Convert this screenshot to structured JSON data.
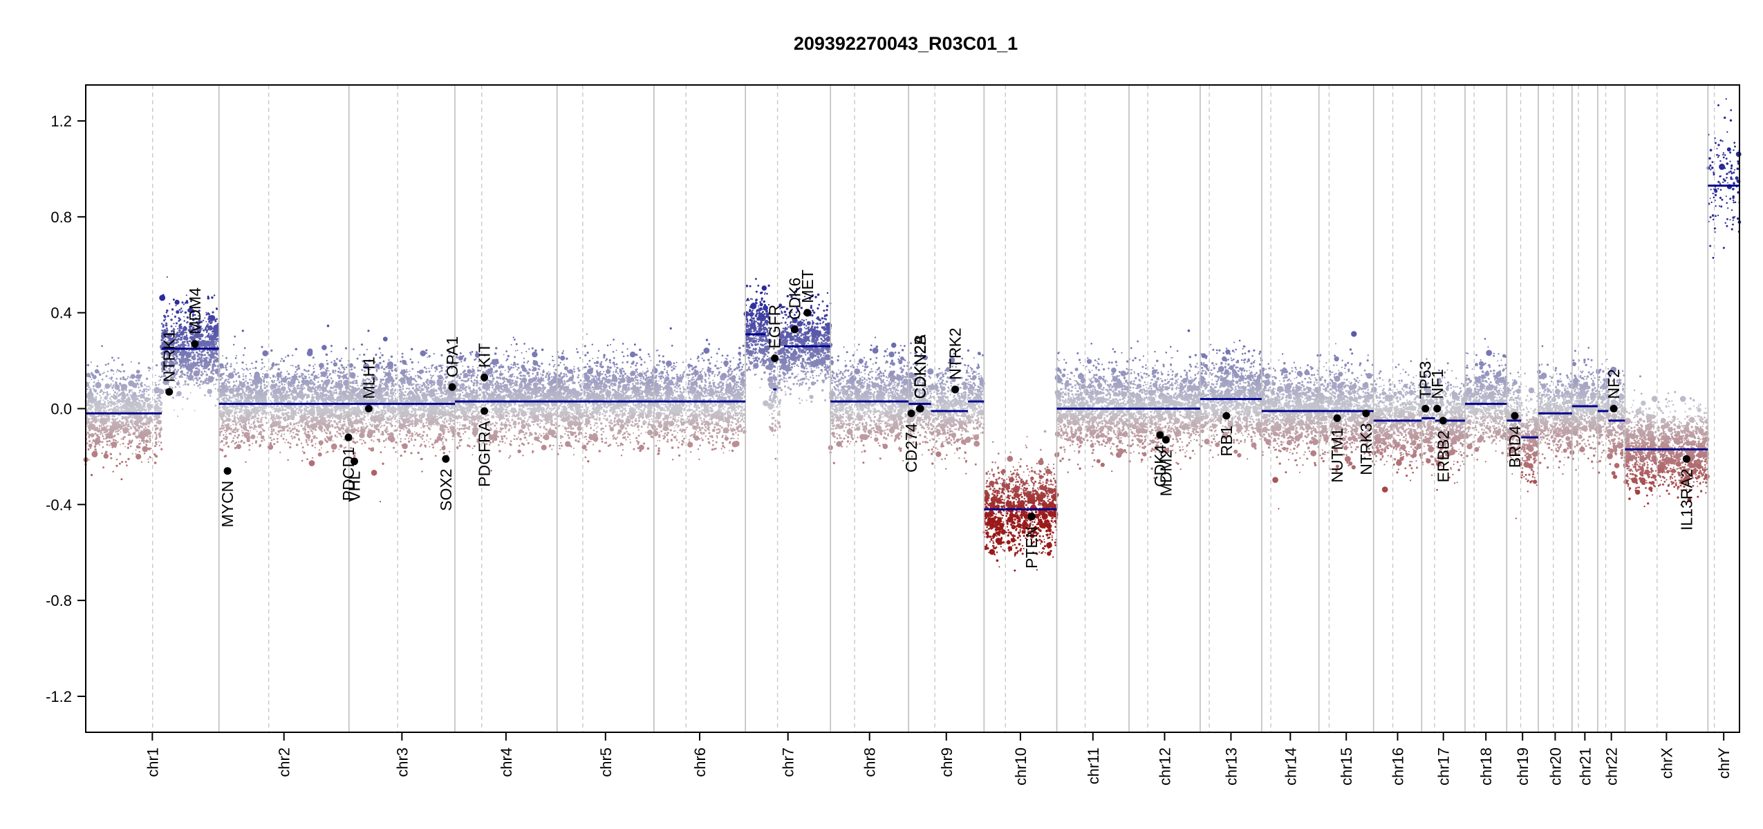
{
  "chart_data": {
    "type": "scatter",
    "title": "209392270043_R03C01_1",
    "xlabel": "",
    "ylabel": "",
    "ylim": [
      -1.35,
      1.35
    ],
    "yticks": [
      "1.2",
      "0.8",
      "0.4",
      "0.0",
      "-0.4",
      "-0.8",
      "-1.2"
    ],
    "ytick_values": [
      1.2,
      0.8,
      0.4,
      0.0,
      -0.4,
      -0.8,
      -1.2
    ],
    "chromosomes": [
      {
        "name": "chr1",
        "length": 249,
        "centromere": 125
      },
      {
        "name": "chr2",
        "length": 243,
        "centromere": 93
      },
      {
        "name": "chr3",
        "length": 198,
        "centromere": 91
      },
      {
        "name": "chr4",
        "length": 191,
        "centromere": 50
      },
      {
        "name": "chr5",
        "length": 181,
        "centromere": 48
      },
      {
        "name": "chr6",
        "length": 171,
        "centromere": 60
      },
      {
        "name": "chr7",
        "length": 159,
        "centromere": 60
      },
      {
        "name": "chr8",
        "length": 146,
        "centromere": 45
      },
      {
        "name": "chr9",
        "length": 141,
        "centromere": 49
      },
      {
        "name": "chr10",
        "length": 136,
        "centromere": 40
      },
      {
        "name": "chr11",
        "length": 135,
        "centromere": 53
      },
      {
        "name": "chr12",
        "length": 133,
        "centromere": 35
      },
      {
        "name": "chr13",
        "length": 115,
        "centromere": 17
      },
      {
        "name": "chr14",
        "length": 107,
        "centromere": 17
      },
      {
        "name": "chr15",
        "length": 102,
        "centromere": 19
      },
      {
        "name": "chr16",
        "length": 90,
        "centromere": 36
      },
      {
        "name": "chr17",
        "length": 81,
        "centromere": 24
      },
      {
        "name": "chr18",
        "length": 78,
        "centromere": 17
      },
      {
        "name": "chr19",
        "length": 59,
        "centromere": 26
      },
      {
        "name": "chr20",
        "length": 63,
        "centromere": 28
      },
      {
        "name": "chr21",
        "length": 48,
        "centromere": 12
      },
      {
        "name": "chr22",
        "length": 51,
        "centromere": 15
      },
      {
        "name": "chrX",
        "length": 155,
        "centromere": 60
      },
      {
        "name": "chrY",
        "length": 59,
        "centromere": 12
      }
    ],
    "segments": [
      {
        "chr": "chr1",
        "start": 0,
        "end": 142,
        "value": -0.02
      },
      {
        "chr": "chr1",
        "start": 142,
        "end": 249,
        "value": 0.25
      },
      {
        "chr": "chr2",
        "start": 0,
        "end": 243,
        "value": 0.02
      },
      {
        "chr": "chr3",
        "start": 0,
        "end": 198,
        "value": 0.02
      },
      {
        "chr": "chr4",
        "start": 0,
        "end": 191,
        "value": 0.03
      },
      {
        "chr": "chr5",
        "start": 0,
        "end": 181,
        "value": 0.03
      },
      {
        "chr": "chr6",
        "start": 0,
        "end": 171,
        "value": 0.03
      },
      {
        "chr": "chr7",
        "start": 0,
        "end": 38,
        "value": 0.31
      },
      {
        "chr": "chr7",
        "start": 52,
        "end": 58,
        "value": 0.08
      },
      {
        "chr": "chr7",
        "start": 72,
        "end": 159,
        "value": 0.26
      },
      {
        "chr": "chr8",
        "start": 0,
        "end": 146,
        "value": 0.03
      },
      {
        "chr": "chr9",
        "start": 0,
        "end": 42,
        "value": 0.02
      },
      {
        "chr": "chr9",
        "start": 42,
        "end": 111,
        "value": -0.01
      },
      {
        "chr": "chr9",
        "start": 111,
        "end": 141,
        "value": 0.03
      },
      {
        "chr": "chr10",
        "start": 0,
        "end": 136,
        "value": -0.42
      },
      {
        "chr": "chr11",
        "start": 0,
        "end": 135,
        "value": 0.0
      },
      {
        "chr": "chr12",
        "start": 0,
        "end": 133,
        "value": 0.0
      },
      {
        "chr": "chr13",
        "start": 0,
        "end": 115,
        "value": 0.04
      },
      {
        "chr": "chr14",
        "start": 0,
        "end": 107,
        "value": -0.01
      },
      {
        "chr": "chr15",
        "start": 0,
        "end": 102,
        "value": -0.01
      },
      {
        "chr": "chr16",
        "start": 0,
        "end": 90,
        "value": -0.05
      },
      {
        "chr": "chr17",
        "start": 0,
        "end": 25,
        "value": -0.04
      },
      {
        "chr": "chr17",
        "start": 25,
        "end": 81,
        "value": -0.05
      },
      {
        "chr": "chr18",
        "start": 0,
        "end": 78,
        "value": 0.02
      },
      {
        "chr": "chr19",
        "start": 0,
        "end": 27,
        "value": -0.05
      },
      {
        "chr": "chr19",
        "start": 27,
        "end": 59,
        "value": -0.12
      },
      {
        "chr": "chr20",
        "start": 0,
        "end": 63,
        "value": -0.02
      },
      {
        "chr": "chr21",
        "start": 0,
        "end": 48,
        "value": 0.01
      },
      {
        "chr": "chr22",
        "start": 0,
        "end": 20,
        "value": -0.01
      },
      {
        "chr": "chr22",
        "start": 20,
        "end": 51,
        "value": -0.05
      },
      {
        "chr": "chrX",
        "start": 0,
        "end": 155,
        "value": -0.17
      },
      {
        "chr": "chrY",
        "start": 0,
        "end": 59,
        "value": 0.93
      }
    ],
    "genes": [
      {
        "name": "NTRK1",
        "chr": "chr1",
        "pos": 156,
        "value": 0.07
      },
      {
        "name": "MDM4",
        "chr": "chr1",
        "pos": 204,
        "value": 0.27
      },
      {
        "name": "MYCN",
        "chr": "chr2",
        "pos": 16,
        "value": -0.26
      },
      {
        "name": "PDCD1",
        "chr": "chr2",
        "pos": 242,
        "value": -0.12
      },
      {
        "name": "VHL",
        "chr": "chr3",
        "pos": 10,
        "value": -0.22
      },
      {
        "name": "MLH1",
        "chr": "chr3",
        "pos": 37,
        "value": 0.0
      },
      {
        "name": "SOX2",
        "chr": "chr3",
        "pos": 181,
        "value": -0.21
      },
      {
        "name": "OPA1",
        "chr": "chr3",
        "pos": 193,
        "value": 0.09
      },
      {
        "name": "PDGFRA",
        "chr": "chr4",
        "pos": 55,
        "value": -0.01
      },
      {
        "name": "KIT",
        "chr": "chr4",
        "pos": 55,
        "value": 0.13
      },
      {
        "name": "EGFR",
        "chr": "chr7",
        "pos": 55,
        "value": 0.21
      },
      {
        "name": "CDK6",
        "chr": "chr7",
        "pos": 92,
        "value": 0.33
      },
      {
        "name": "MET",
        "chr": "chr7",
        "pos": 116,
        "value": 0.4
      },
      {
        "name": "CD274",
        "chr": "chr9",
        "pos": 5,
        "value": -0.02
      },
      {
        "name": "CDKN2A",
        "chr": "chr9",
        "pos": 21,
        "value": 0.0
      },
      {
        "name": "CDKN2B",
        "chr": "chr9",
        "pos": 22,
        "value": 0.0
      },
      {
        "name": "NTRK2",
        "chr": "chr9",
        "pos": 87,
        "value": 0.08
      },
      {
        "name": "PTEN",
        "chr": "chr10",
        "pos": 89,
        "value": -0.45
      },
      {
        "name": "CDK4",
        "chr": "chr12",
        "pos": 58,
        "value": -0.11
      },
      {
        "name": "MDM2",
        "chr": "chr12",
        "pos": 69,
        "value": -0.13
      },
      {
        "name": "RB1",
        "chr": "chr13",
        "pos": 49,
        "value": -0.03
      },
      {
        "name": "NUTM1",
        "chr": "chr15",
        "pos": 34,
        "value": -0.04
      },
      {
        "name": "NTRK3",
        "chr": "chr15",
        "pos": 88,
        "value": -0.02
      },
      {
        "name": "TP53",
        "chr": "chr17",
        "pos": 7,
        "value": 0.0
      },
      {
        "name": "NF1",
        "chr": "chr17",
        "pos": 29,
        "value": 0.0
      },
      {
        "name": "ERBB2",
        "chr": "chr17",
        "pos": 40,
        "value": -0.05
      },
      {
        "name": "BRD4",
        "chr": "chr19",
        "pos": 15,
        "value": -0.03
      },
      {
        "name": "NF2",
        "chr": "chr22",
        "pos": 30,
        "value": 0.0
      },
      {
        "name": "IL13RA2",
        "chr": "chrX",
        "pos": 115,
        "value": -0.21
      }
    ],
    "colors": {
      "gain": "#2a2a9a",
      "loss": "#9a1a1a",
      "neutral": "#c8c8d0",
      "segment": "#00008b",
      "gene_point": "#000000",
      "axis": "#000000",
      "chr_boundary": "#bdbdbd",
      "centromere": "#c8c8c8"
    }
  }
}
